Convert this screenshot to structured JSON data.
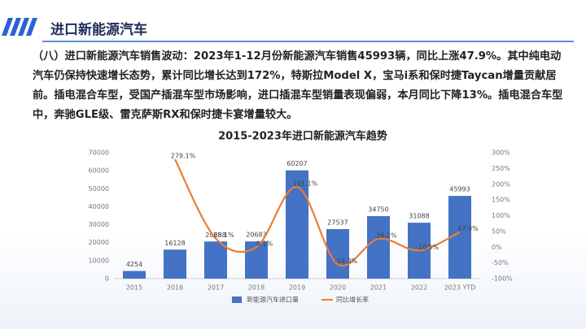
{
  "header": {
    "title": "进口新能源汽车"
  },
  "paragraph": "（八）进口新能源汽车销售波动：2023年1-12月份新能源汽车销售45993辆，同比上涨47.9%。其中纯电动汽车仍保持快速增长态势，累计同比增长达到172%，特斯拉Model X，宝马i系和保时捷Taycan增量贡献居前。插电混合车型，受国产插混车型市场影响，进口插混车型销量表现偏弱，本月同比下降13%。插电混合车型中，奔驰GLE级、雷克萨斯RX和保时捷卡宴增量较大。",
  "chart_data": {
    "type": "bar",
    "title": "2015-2023年进口新能源汽车趋势",
    "categories": [
      "2015",
      "2016",
      "2017",
      "2018",
      "2019",
      "2020",
      "2021",
      "2022",
      "2023 YTD"
    ],
    "series": [
      {
        "name": "新能源汽车进口量",
        "type": "bar",
        "color": "#4472c4",
        "values": [
          4254,
          16128,
          20658,
          20683,
          60207,
          27537,
          34750,
          31088,
          45993
        ]
      },
      {
        "name": "同比增长率",
        "type": "line",
        "axis": "y2",
        "color": "#ed7d31",
        "values": [
          null,
          279.1,
          28.1,
          0.1,
          191.1,
          -54.3,
          26.2,
          -10.5,
          47.9
        ],
        "value_labels": [
          null,
          "279.1%",
          "28.1%",
          "0.1%",
          "191.1%",
          "-54.3%",
          "26.2%",
          "-10.5%",
          "47.9%"
        ]
      }
    ],
    "ylim": [
      0,
      70000
    ],
    "yticks": [
      0,
      10000,
      20000,
      30000,
      40000,
      50000,
      60000,
      70000
    ],
    "y2lim": [
      -100,
      300
    ],
    "y2ticks": [
      {
        "value": -100,
        "label": "-100%"
      },
      {
        "value": -50,
        "label": "-50%"
      },
      {
        "value": 0,
        "label": "0%"
      },
      {
        "value": 50,
        "label": "50%"
      },
      {
        "value": 100,
        "label": "100%"
      },
      {
        "value": 150,
        "label": "150%"
      },
      {
        "value": 200,
        "label": "200%"
      },
      {
        "value": 250,
        "label": "250%"
      },
      {
        "value": 300,
        "label": "300%"
      }
    ],
    "grid": false,
    "legend": "bottom"
  }
}
